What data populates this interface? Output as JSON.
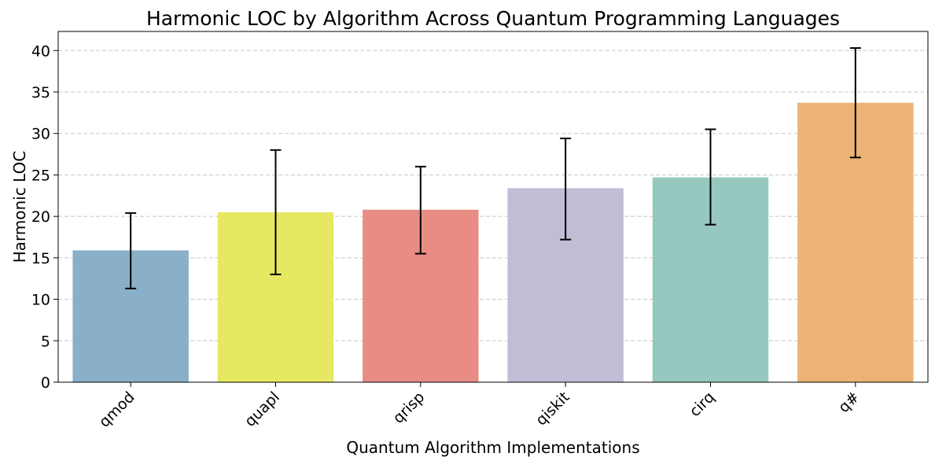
{
  "chart_data": {
    "type": "bar",
    "title": "Harmonic LOC by Algorithm Across Quantum Programming Languages",
    "xlabel": "Quantum Algorithm Implementations",
    "ylabel": "Harmonic LOC",
    "categories": [
      "qmod",
      "quapl",
      "qrisp",
      "qiskit",
      "cirq",
      "q#"
    ],
    "values": [
      15.9,
      20.5,
      20.8,
      23.4,
      24.7,
      33.7
    ],
    "error_low": [
      11.3,
      13.0,
      15.5,
      17.2,
      19.0,
      27.1
    ],
    "error_high": [
      20.4,
      28.0,
      26.0,
      29.4,
      30.5,
      40.3
    ],
    "colors": [
      "#8aafc8",
      "#e6e862",
      "#e98d84",
      "#c1bdd6",
      "#96c8bf",
      "#ebb375"
    ],
    "ylim": [
      0,
      42.3
    ],
    "yticks": [
      0,
      5,
      10,
      15,
      20,
      25,
      30,
      35,
      40
    ],
    "grid": "y-dashed",
    "legend": "none"
  }
}
